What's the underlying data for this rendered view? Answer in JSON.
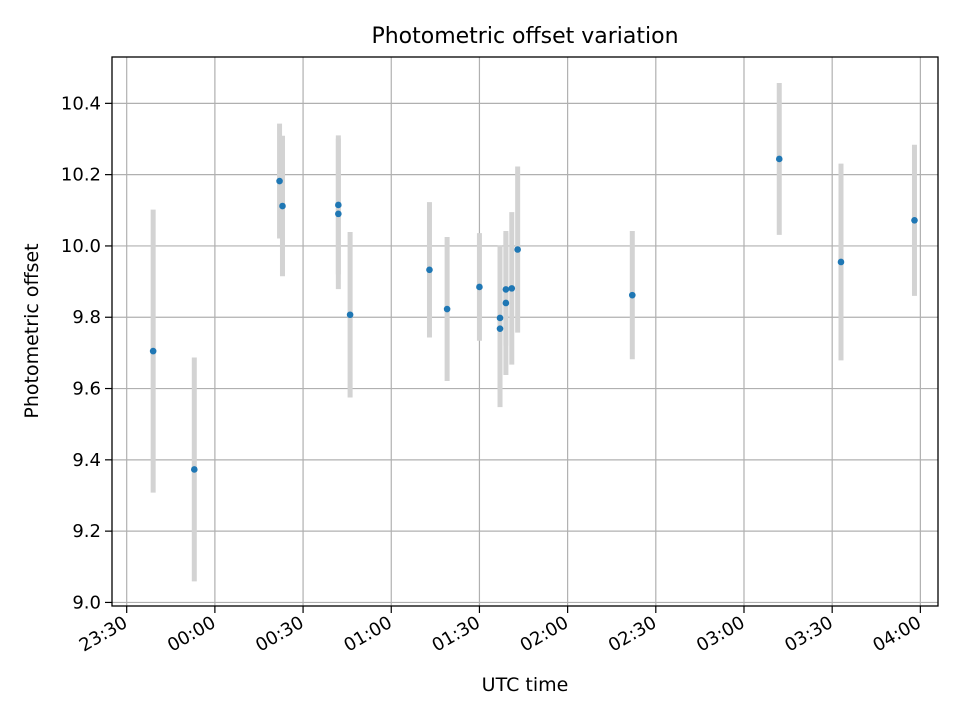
{
  "chart_data": {
    "type": "scatter",
    "title": "Photometric offset variation",
    "xlabel": "UTC time",
    "ylabel": "Photometric offset",
    "xlim": [
      "23:25",
      "04:06"
    ],
    "ylim": [
      8.99,
      10.53
    ],
    "grid": true,
    "x_ticks": [
      "23:30",
      "00:00",
      "00:30",
      "01:00",
      "01:30",
      "02:00",
      "02:30",
      "03:00",
      "03:30",
      "04:00"
    ],
    "y_ticks": [
      "9.0",
      "9.2",
      "9.4",
      "9.6",
      "9.8",
      "10.0",
      "10.2",
      "10.4"
    ],
    "point_color": "#1f77b4",
    "errorbar_color": "#d3d3d3",
    "points": [
      {
        "t": "23:39",
        "y": 9.705,
        "err": 0.397
      },
      {
        "t": "23:53",
        "y": 9.373,
        "err": 0.314
      },
      {
        "t": "00:22",
        "y": 10.182,
        "err": 0.161
      },
      {
        "t": "00:23",
        "y": 10.112,
        "err": 0.197
      },
      {
        "t": "00:42",
        "y": 10.09,
        "err": 0.211
      },
      {
        "t": "00:42",
        "y": 10.115,
        "err": 0.195
      },
      {
        "t": "00:46",
        "y": 9.807,
        "err": 0.232
      },
      {
        "t": "01:13",
        "y": 9.933,
        "err": 0.19
      },
      {
        "t": "01:19",
        "y": 9.823,
        "err": 0.202
      },
      {
        "t": "01:30",
        "y": 9.885,
        "err": 0.151
      },
      {
        "t": "01:37",
        "y": 9.798,
        "err": 0.203
      },
      {
        "t": "01:37",
        "y": 9.768,
        "err": 0.22
      },
      {
        "t": "01:39",
        "y": 9.84,
        "err": 0.202
      },
      {
        "t": "01:39",
        "y": 9.878,
        "err": 0.158
      },
      {
        "t": "01:41",
        "y": 9.881,
        "err": 0.214
      },
      {
        "t": "01:43",
        "y": 9.99,
        "err": 0.233
      },
      {
        "t": "02:22",
        "y": 9.862,
        "err": 0.18
      },
      {
        "t": "03:12",
        "y": 10.244,
        "err": 0.213
      },
      {
        "t": "03:33",
        "y": 9.955,
        "err": 0.276
      },
      {
        "t": "03:58",
        "y": 10.072,
        "err": 0.212
      }
    ]
  }
}
